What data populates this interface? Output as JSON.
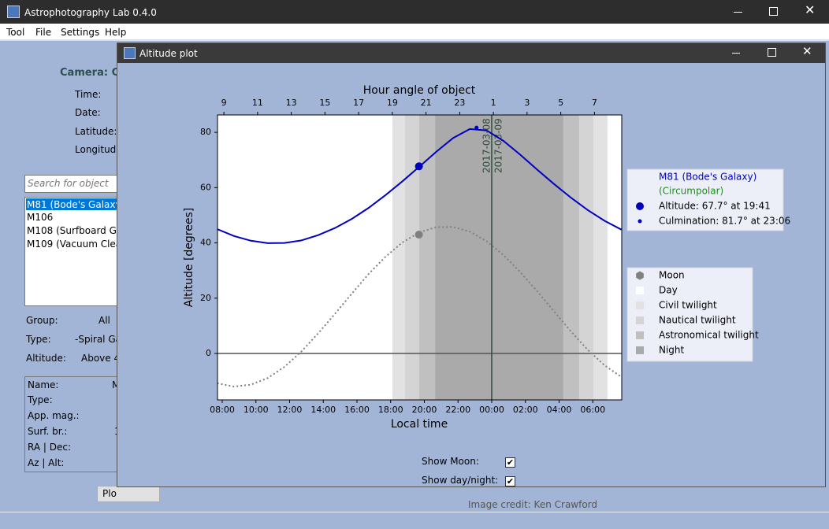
{
  "window": {
    "title": "Astrophotography Lab 0.4.0",
    "menu": [
      "Tool",
      "File",
      "Settings",
      "Help"
    ]
  },
  "main_panel": {
    "camera": "Camera: Ca",
    "fields": [
      "Time:",
      "Date:",
      "Latitude:",
      "Longitude"
    ],
    "search_placeholder": "Search for object",
    "objects": [
      "M81 (Bode's Galaxy)",
      "M106",
      "M108 (Surfboard Ga",
      "M109 (Vacuum Clea"
    ],
    "filters": [
      {
        "label": "Group:",
        "value": "All"
      },
      {
        "label": "Type:",
        "value": "-Spiral Ga"
      },
      {
        "label": "Altitude:",
        "value": "Above 4"
      }
    ],
    "info_fields": [
      {
        "label": "Name:",
        "value": "M"
      },
      {
        "label": "Type:"
      },
      {
        "label": "App. mag.:"
      },
      {
        "label": "Surf. br.:",
        "value": "1"
      },
      {
        "label": "RA | Dec:"
      },
      {
        "label": "Az | Alt:"
      }
    ],
    "plot_button": "Plo",
    "credit": "Image credit: Ken Crawford"
  },
  "dialog": {
    "title": "Altitude plot",
    "options": [
      {
        "label": "Show Moon:",
        "checked": true
      },
      {
        "label": "Show day/night:",
        "checked": true
      }
    ]
  },
  "chart_data": {
    "type": "line",
    "xlabel": "Local time",
    "x2label": "Hour angle of object",
    "ylabel": "Altitude [degrees]",
    "status": "(Circumpolar)",
    "x": [
      7.7,
      8.7,
      9.7,
      10.7,
      11.7,
      12.7,
      13.7,
      14.7,
      15.7,
      16.7,
      17.7,
      18.7,
      19.7,
      20.7,
      21.7,
      22.7,
      23.7,
      24.7,
      25.7,
      26.7,
      27.7,
      28.7,
      29.7,
      30.7,
      31.7
    ],
    "series": [
      {
        "name": "M81 (Bode's Galaxy)",
        "color": "#0000c0",
        "style": "solid",
        "values": [
          45.0,
          42.5,
          40.8,
          39.9,
          40.0,
          40.9,
          42.8,
          45.4,
          48.7,
          52.7,
          57.3,
          62.3,
          67.6,
          72.9,
          77.9,
          81.2,
          80.7,
          76.9,
          71.9,
          66.5,
          61.3,
          56.4,
          51.9,
          48.0,
          44.8
        ]
      },
      {
        "name": "Moon",
        "color": "#808080",
        "style": "dotted",
        "values": [
          -10.8,
          -12.0,
          -11.3,
          -8.9,
          -4.8,
          0.7,
          7.3,
          14.4,
          21.7,
          28.8,
          35.0,
          40.2,
          43.8,
          45.7,
          45.8,
          44.1,
          40.6,
          35.6,
          29.4,
          22.5,
          15.2,
          8.0,
          1.3,
          -4.3,
          -8.5
        ]
      }
    ],
    "markers": [
      {
        "series": 0,
        "x": 19.68,
        "y": 67.7,
        "size": "large",
        "label": "Altitude: 67.7° at 19:41"
      },
      {
        "series": 0,
        "x": 23.1,
        "y": 81.7,
        "size": "small",
        "label": "Culmination: 81.7° at 23:06"
      },
      {
        "series": 1,
        "x": 19.68,
        "y": 43,
        "size": "large"
      }
    ],
    "shading": [
      {
        "name": "Day",
        "color": "#ffffff",
        "ranges": [
          [
            7.72,
            18.12
          ],
          [
            30.86,
            31.72
          ]
        ]
      },
      {
        "name": "Civil twilight",
        "color": "#e2e2e2",
        "ranges": [
          [
            18.12,
            18.87
          ],
          [
            30.02,
            30.86
          ]
        ]
      },
      {
        "name": "Nautical twilight",
        "color": "#d4d4d4",
        "ranges": [
          [
            18.87,
            19.71
          ],
          [
            29.18,
            30.02
          ]
        ]
      },
      {
        "name": "Astronomical twilight",
        "color": "#c0c0c0",
        "ranges": [
          [
            19.71,
            20.65
          ],
          [
            28.24,
            29.18
          ]
        ]
      },
      {
        "name": "Night",
        "color": "#aaaaaa",
        "ranges": [
          [
            20.65,
            28.24
          ]
        ]
      }
    ],
    "hline": 0,
    "vline": {
      "x": 24,
      "color": "#2f4a3a",
      "labels": [
        "2017-03-08",
        "2017-03-09"
      ]
    },
    "xlim": [
      7.72,
      31.72
    ],
    "ylim": [
      -16.8,
      86.3
    ],
    "yticks": [
      0,
      20,
      40,
      60,
      80
    ],
    "xticks": [
      {
        "value": 8,
        "label": "08:00"
      },
      {
        "value": 10,
        "label": "10:00"
      },
      {
        "value": 12,
        "label": "12:00"
      },
      {
        "value": 14,
        "label": "14:00"
      },
      {
        "value": 16,
        "label": "16:00"
      },
      {
        "value": 18,
        "label": "18:00"
      },
      {
        "value": 20,
        "label": "20:00"
      },
      {
        "value": 22,
        "label": "22:00"
      },
      {
        "value": 24,
        "label": "00:00"
      },
      {
        "value": 26,
        "label": "02:00"
      },
      {
        "value": 28,
        "label": "04:00"
      },
      {
        "value": 30,
        "label": "06:00"
      }
    ],
    "x2ticks": [
      {
        "value": 8.1,
        "label": "9"
      },
      {
        "value": 10.1,
        "label": "11"
      },
      {
        "value": 12.1,
        "label": "13"
      },
      {
        "value": 14.1,
        "label": "15"
      },
      {
        "value": 16.1,
        "label": "17"
      },
      {
        "value": 18.1,
        "label": "19"
      },
      {
        "value": 20.1,
        "label": "21"
      },
      {
        "value": 22.1,
        "label": "23"
      },
      {
        "value": 24.1,
        "label": "1"
      },
      {
        "value": 26.1,
        "label": "3"
      },
      {
        "value": 28.1,
        "label": "5"
      },
      {
        "value": 30.1,
        "label": "7"
      }
    ]
  }
}
